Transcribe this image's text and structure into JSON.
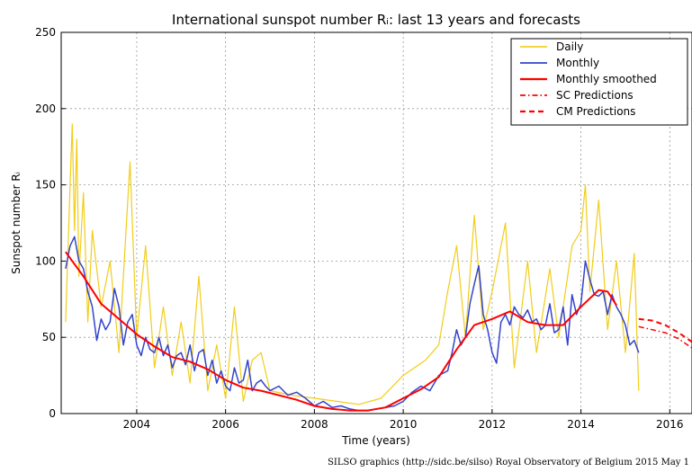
{
  "chart_data": {
    "type": "line",
    "title": "International sunspot number Rᵢ: last 13 years and forecasts",
    "xlabel": "Time (years)",
    "ylabel": "Sunspot number Rᵢ",
    "xlim": [
      2002.3,
      2016.5
    ],
    "ylim": [
      0,
      250
    ],
    "x_ticks": [
      2004,
      2006,
      2008,
      2010,
      2012,
      2014,
      2016
    ],
    "y_ticks": [
      0,
      50,
      100,
      150,
      200,
      250
    ],
    "grid": true,
    "legend_position": "top-right",
    "colors": {
      "daily": "#f0c800",
      "monthly": "#3344cc",
      "smoothed": "#ff0000",
      "sc_prediction": "#ff0000",
      "cm_prediction": "#ff0000"
    },
    "series": [
      {
        "name": "Daily",
        "style": "thin-yellow",
        "note": "daily values fluctuate widely around the monthly trend",
        "x": [
          2002.4,
          2002.5,
          2002.55,
          2002.6,
          2002.65,
          2002.7,
          2002.8,
          2002.9,
          2003.0,
          2003.2,
          2003.4,
          2003.6,
          2003.8,
          2003.85,
          2004.0,
          2004.2,
          2004.4,
          2004.6,
          2004.8,
          2005.0,
          2005.2,
          2005.4,
          2005.6,
          2005.8,
          2006.0,
          2006.2,
          2006.4,
          2006.6,
          2006.8,
          2007.0,
          2007.5,
          2008.0,
          2008.5,
          2009.0,
          2009.5,
          2010.0,
          2010.5,
          2010.8,
          2011.0,
          2011.2,
          2011.4,
          2011.6,
          2011.8,
          2012.0,
          2012.3,
          2012.5,
          2012.8,
          2013.0,
          2013.3,
          2013.5,
          2013.8,
          2014.0,
          2014.1,
          2014.2,
          2014.4,
          2014.6,
          2014.8,
          2015.0,
          2015.2,
          2015.3
        ],
        "values": [
          60,
          150,
          190,
          120,
          180,
          90,
          145,
          60,
          120,
          70,
          100,
          40,
          140,
          165,
          50,
          110,
          30,
          70,
          25,
          60,
          20,
          90,
          15,
          45,
          10,
          70,
          8,
          35,
          40,
          15,
          12,
          10,
          8,
          6,
          10,
          25,
          35,
          45,
          80,
          110,
          50,
          130,
          55,
          80,
          125,
          30,
          100,
          40,
          95,
          50,
          110,
          120,
          150,
          80,
          140,
          55,
          100,
          40,
          105,
          15
        ]
      },
      {
        "name": "Monthly",
        "style": "blue",
        "x": [
          2002.4,
          2002.5,
          2002.6,
          2002.7,
          2002.8,
          2002.9,
          2003.0,
          2003.1,
          2003.2,
          2003.3,
          2003.4,
          2003.5,
          2003.6,
          2003.7,
          2003.8,
          2003.9,
          2004.0,
          2004.1,
          2004.2,
          2004.3,
          2004.4,
          2004.5,
          2004.6,
          2004.7,
          2004.8,
          2004.9,
          2005.0,
          2005.1,
          2005.2,
          2005.3,
          2005.4,
          2005.5,
          2005.6,
          2005.7,
          2005.8,
          2005.9,
          2006.0,
          2006.1,
          2006.2,
          2006.3,
          2006.4,
          2006.5,
          2006.6,
          2006.7,
          2006.8,
          2006.9,
          2007.0,
          2007.2,
          2007.4,
          2007.6,
          2007.8,
          2008.0,
          2008.2,
          2008.4,
          2008.6,
          2008.8,
          2009.0,
          2009.2,
          2009.4,
          2009.6,
          2009.8,
          2010.0,
          2010.2,
          2010.4,
          2010.6,
          2010.8,
          2011.0,
          2011.1,
          2011.2,
          2011.3,
          2011.4,
          2011.5,
          2011.6,
          2011.7,
          2011.8,
          2011.9,
          2012.0,
          2012.1,
          2012.2,
          2012.3,
          2012.4,
          2012.5,
          2012.6,
          2012.7,
          2012.8,
          2012.9,
          2013.0,
          2013.1,
          2013.2,
          2013.3,
          2013.4,
          2013.5,
          2013.6,
          2013.7,
          2013.8,
          2013.9,
          2014.0,
          2014.1,
          2014.2,
          2014.3,
          2014.4,
          2014.5,
          2014.6,
          2014.7,
          2014.8,
          2014.9,
          2015.0,
          2015.1,
          2015.2,
          2015.3
        ],
        "values": [
          95,
          110,
          116,
          100,
          95,
          80,
          70,
          48,
          62,
          55,
          60,
          82,
          70,
          45,
          60,
          65,
          45,
          38,
          50,
          42,
          40,
          50,
          38,
          45,
          30,
          38,
          40,
          32,
          45,
          28,
          40,
          42,
          25,
          35,
          20,
          28,
          18,
          15,
          30,
          20,
          22,
          35,
          15,
          20,
          22,
          18,
          15,
          18,
          12,
          14,
          10,
          5,
          8,
          4,
          5,
          3,
          2,
          2,
          3,
          4,
          5,
          8,
          14,
          18,
          15,
          25,
          28,
          40,
          55,
          45,
          50,
          72,
          85,
          97,
          65,
          55,
          40,
          33,
          60,
          65,
          58,
          70,
          65,
          63,
          68,
          60,
          62,
          55,
          58,
          72,
          53,
          55,
          70,
          45,
          78,
          65,
          72,
          100,
          88,
          78,
          77,
          80,
          65,
          78,
          70,
          65,
          58,
          45,
          48,
          40
        ]
      },
      {
        "name": "Monthly smoothed",
        "style": "red",
        "x": [
          2002.4,
          2002.8,
          2003.2,
          2003.6,
          2004.0,
          2004.4,
          2004.8,
          2005.2,
          2005.6,
          2006.0,
          2006.4,
          2006.8,
          2007.2,
          2007.6,
          2008.0,
          2008.4,
          2008.8,
          2009.2,
          2009.6,
          2010.0,
          2010.4,
          2010.8,
          2011.2,
          2011.6,
          2012.0,
          2012.4,
          2012.8,
          2013.2,
          2013.6,
          2014.0,
          2014.4,
          2014.6,
          2014.8
        ],
        "values": [
          106,
          90,
          72,
          62,
          52,
          44,
          37,
          34,
          29,
          22,
          17,
          15,
          12,
          9,
          5,
          3,
          2,
          2,
          4,
          10,
          16,
          24,
          42,
          58,
          62,
          67,
          60,
          58,
          58,
          70,
          81,
          80,
          71
        ]
      },
      {
        "name": "SC Predictions",
        "style": "red-dashdot",
        "x": [
          2015.3,
          2015.6,
          2015.9,
          2016.2,
          2016.5
        ],
        "values": [
          57,
          55,
          53,
          49,
          43
        ]
      },
      {
        "name": "CM Predictions",
        "style": "red-dashed",
        "x": [
          2015.3,
          2015.6,
          2015.9,
          2016.2,
          2016.5
        ],
        "values": [
          62,
          61,
          58,
          53,
          47
        ]
      }
    ],
    "credit": "SILSO graphics (http://sidc.be/silso)  Royal Observatory of Belgium  2015 May 1"
  }
}
